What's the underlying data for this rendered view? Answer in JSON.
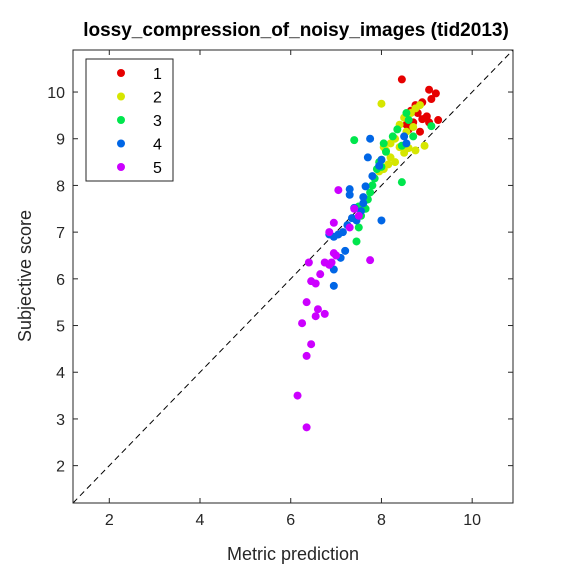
{
  "chart_data": {
    "type": "scatter",
    "title": "lossy_compression_of_noisy_images (tid2013)",
    "xlabel": "Metric prediction",
    "ylabel": "Subjective score",
    "xlim": [
      1.2,
      10.9
    ],
    "ylim": [
      1.2,
      10.9
    ],
    "xticks": [
      2,
      4,
      6,
      8,
      10
    ],
    "yticks": [
      2,
      3,
      4,
      5,
      6,
      7,
      8,
      9,
      10
    ],
    "reference_line": "y = x (dashed)",
    "legend_position": "top-left",
    "grid": false,
    "series": [
      {
        "name": "1",
        "color": "#e60000",
        "points": [
          [
            8.45,
            10.27
          ],
          [
            9.05,
            10.05
          ],
          [
            9.2,
            9.97
          ],
          [
            9.1,
            9.85
          ],
          [
            8.9,
            9.78
          ],
          [
            8.75,
            9.72
          ],
          [
            8.65,
            9.6
          ],
          [
            8.8,
            9.55
          ],
          [
            9.0,
            9.48
          ],
          [
            8.9,
            9.42
          ],
          [
            9.05,
            9.35
          ],
          [
            9.25,
            9.4
          ],
          [
            8.7,
            9.35
          ],
          [
            8.85,
            9.15
          ],
          [
            8.55,
            9.3
          ],
          [
            8.6,
            9.2
          ]
        ]
      },
      {
        "name": "2",
        "color": "#d6e600",
        "points": [
          [
            8.0,
            9.75
          ],
          [
            8.85,
            9.72
          ],
          [
            8.75,
            9.65
          ],
          [
            8.65,
            9.55
          ],
          [
            8.5,
            9.45
          ],
          [
            8.4,
            9.3
          ],
          [
            8.7,
            9.25
          ],
          [
            8.55,
            9.15
          ],
          [
            8.3,
            9.0
          ],
          [
            8.2,
            8.9
          ],
          [
            8.4,
            8.82
          ],
          [
            8.6,
            8.8
          ],
          [
            8.95,
            8.85
          ],
          [
            8.75,
            8.75
          ],
          [
            8.05,
            8.82
          ],
          [
            8.1,
            8.75
          ],
          [
            8.2,
            8.6
          ],
          [
            8.0,
            8.55
          ],
          [
            8.15,
            8.45
          ],
          [
            8.05,
            8.35
          ],
          [
            7.95,
            8.3
          ],
          [
            8.3,
            8.5
          ],
          [
            8.5,
            8.7
          ]
        ]
      },
      {
        "name": "3",
        "color": "#00e64d",
        "points": [
          [
            7.4,
            8.97
          ],
          [
            8.55,
            9.55
          ],
          [
            8.6,
            9.4
          ],
          [
            9.1,
            9.27
          ],
          [
            8.35,
            9.2
          ],
          [
            8.25,
            9.05
          ],
          [
            8.05,
            8.9
          ],
          [
            8.1,
            8.72
          ],
          [
            8.45,
            8.85
          ],
          [
            8.7,
            9.05
          ],
          [
            7.95,
            8.5
          ],
          [
            8.0,
            8.4
          ],
          [
            7.9,
            8.35
          ],
          [
            7.85,
            8.15
          ],
          [
            7.8,
            8.0
          ],
          [
            7.75,
            7.85
          ],
          [
            7.7,
            7.7
          ],
          [
            8.45,
            8.07
          ],
          [
            7.65,
            7.5
          ],
          [
            7.55,
            7.35
          ],
          [
            7.5,
            7.1
          ],
          [
            7.45,
            6.8
          ],
          [
            7.5,
            7.55
          ]
        ]
      },
      {
        "name": "4",
        "color": "#0066e6",
        "points": [
          [
            8.5,
            9.05
          ],
          [
            7.75,
            9.0
          ],
          [
            8.55,
            8.9
          ],
          [
            8.0,
            8.55
          ],
          [
            7.95,
            8.42
          ],
          [
            7.8,
            8.2
          ],
          [
            7.7,
            8.6
          ],
          [
            7.65,
            7.98
          ],
          [
            7.6,
            7.75
          ],
          [
            7.6,
            7.62
          ],
          [
            7.55,
            7.45
          ],
          [
            7.45,
            7.25
          ],
          [
            7.3,
            7.92
          ],
          [
            7.4,
            7.52
          ],
          [
            7.35,
            7.3
          ],
          [
            7.25,
            7.15
          ],
          [
            7.15,
            7.0
          ],
          [
            7.05,
            6.95
          ],
          [
            6.95,
            6.9
          ],
          [
            6.85,
            6.95
          ],
          [
            8.0,
            7.25
          ],
          [
            7.2,
            6.6
          ],
          [
            7.1,
            6.45
          ],
          [
            6.95,
            6.2
          ],
          [
            6.95,
            5.85
          ],
          [
            7.3,
            7.8
          ]
        ]
      },
      {
        "name": "5",
        "color": "#cc00ff",
        "points": [
          [
            7.05,
            7.9
          ],
          [
            7.4,
            7.5
          ],
          [
            7.5,
            7.35
          ],
          [
            6.95,
            7.2
          ],
          [
            6.85,
            7.0
          ],
          [
            7.3,
            7.1
          ],
          [
            6.95,
            6.55
          ],
          [
            7.0,
            6.5
          ],
          [
            7.75,
            6.4
          ],
          [
            6.9,
            6.35
          ],
          [
            6.85,
            6.3
          ],
          [
            6.75,
            6.35
          ],
          [
            6.4,
            6.35
          ],
          [
            6.65,
            6.1
          ],
          [
            6.55,
            5.9
          ],
          [
            6.45,
            5.95
          ],
          [
            6.35,
            5.5
          ],
          [
            6.6,
            5.35
          ],
          [
            6.55,
            5.2
          ],
          [
            6.75,
            5.25
          ],
          [
            6.25,
            5.05
          ],
          [
            6.45,
            4.6
          ],
          [
            6.35,
            4.35
          ],
          [
            6.15,
            3.5
          ],
          [
            6.35,
            2.82
          ]
        ]
      }
    ]
  }
}
